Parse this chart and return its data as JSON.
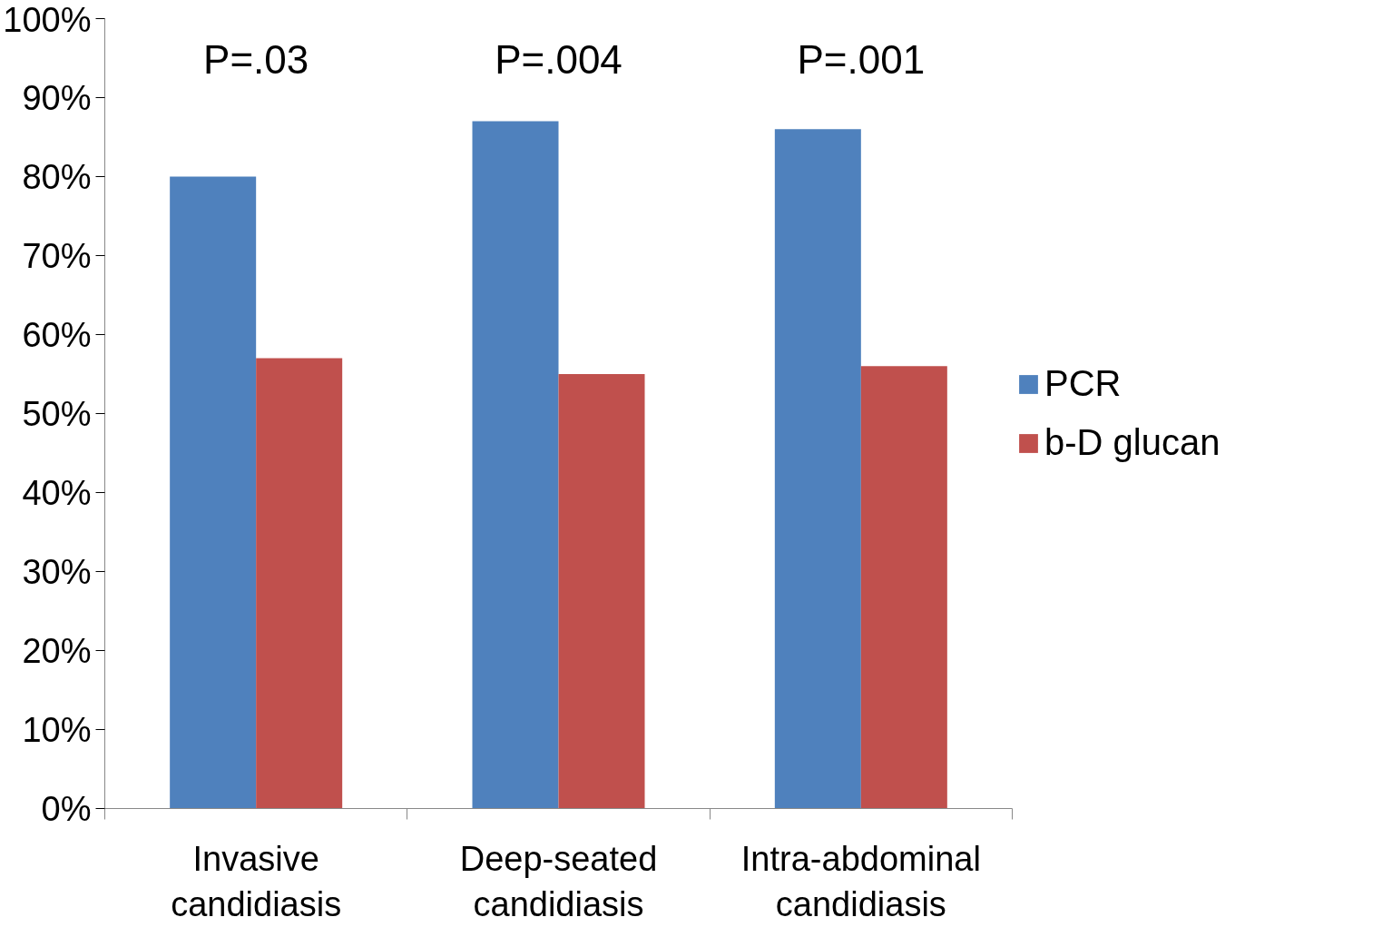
{
  "chart_data": {
    "type": "bar",
    "categories": [
      "Invasive\ncandidiasis",
      "Deep-seated\ncandidiasis",
      "Intra-abdominal\ncandidiasis"
    ],
    "series": [
      {
        "name": "PCR",
        "color": "#4f81bd",
        "values": [
          80,
          87,
          86
        ]
      },
      {
        "name": "b-D glucan",
        "color": "#c0504d",
        "values": [
          57,
          55,
          56
        ]
      }
    ],
    "ylim": [
      0,
      100
    ],
    "yticks": [
      {
        "value": 0,
        "label": "0%"
      },
      {
        "value": 10,
        "label": "10%"
      },
      {
        "value": 20,
        "label": "20%"
      },
      {
        "value": 30,
        "label": "30%"
      },
      {
        "value": 40,
        "label": "40%"
      },
      {
        "value": 50,
        "label": "50%"
      },
      {
        "value": 60,
        "label": "60%"
      },
      {
        "value": 70,
        "label": "70%"
      },
      {
        "value": 80,
        "label": "80%"
      },
      {
        "value": 90,
        "label": "90%"
      },
      {
        "value": 100,
        "label": "100%"
      }
    ],
    "annotations": [
      "P=.03",
      "P=.004",
      "P=.001"
    ],
    "legend": "right",
    "grid": false
  }
}
